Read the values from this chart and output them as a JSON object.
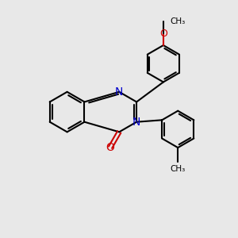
{
  "bg_color": "#e8e8e8",
  "bond_color": "#000000",
  "n_color": "#0000cc",
  "o_color": "#cc0000",
  "bond_width": 1.5,
  "font_size_atom": 10,
  "xlim": [
    0,
    10
  ],
  "ylim": [
    0,
    10
  ]
}
